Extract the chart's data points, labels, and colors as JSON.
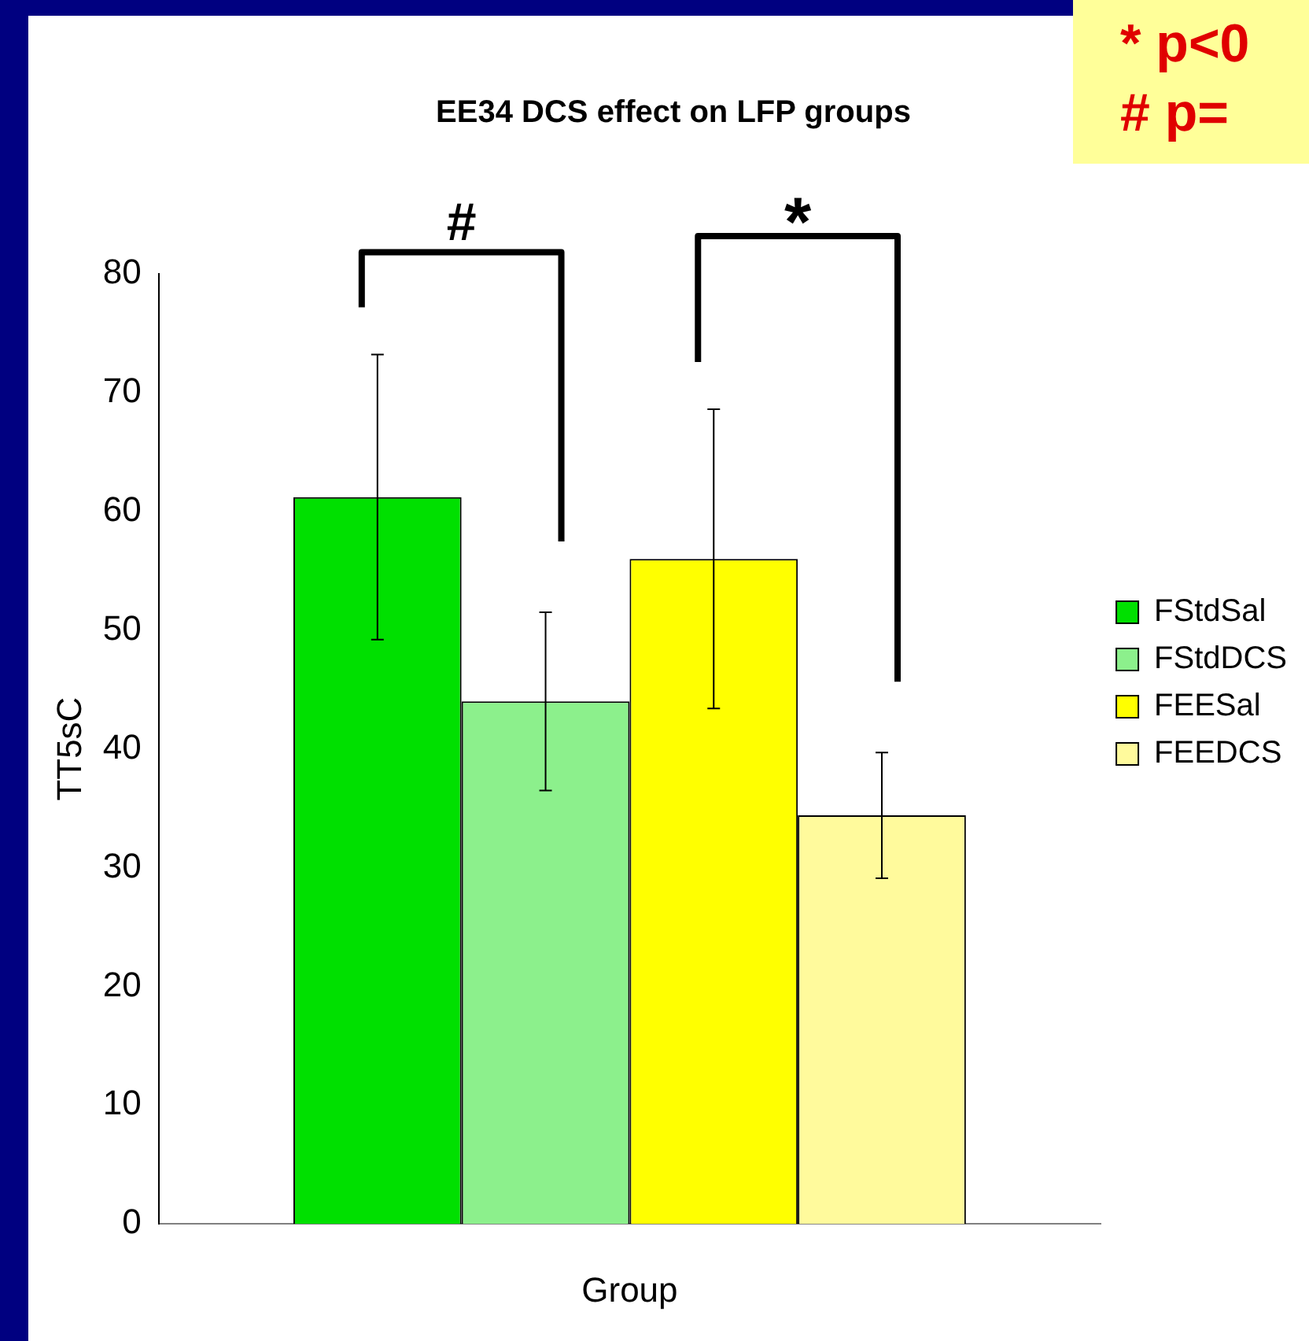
{
  "chart_data": {
    "type": "bar",
    "title": "EE34 DCS effect on LFP groups",
    "xlabel": "Group",
    "ylabel": "TT5sC",
    "categories": [
      null
    ],
    "series": [
      {
        "name": "FStdSal",
        "color": "#00e000",
        "values": [
          61.2
        ],
        "errors": [
          12.0
        ]
      },
      {
        "name": "FStdDCS",
        "color": "#8cf08c",
        "values": [
          44.0
        ],
        "errors": [
          7.5
        ]
      },
      {
        "name": "FEESal",
        "color": "#ffff00",
        "values": [
          56.0
        ],
        "errors": [
          12.6
        ]
      },
      {
        "name": "FEEDCS",
        "color": "#fffa9c",
        "values": [
          34.4
        ],
        "errors": [
          5.3
        ]
      }
    ],
    "ylim": [
      0,
      80
    ],
    "yticks": [
      0,
      10,
      20,
      30,
      40,
      50,
      60,
      70,
      80
    ],
    "grid": false,
    "legend": "right",
    "annotations": [
      "#",
      "*",
      "* p<0",
      "# p="
    ]
  }
}
